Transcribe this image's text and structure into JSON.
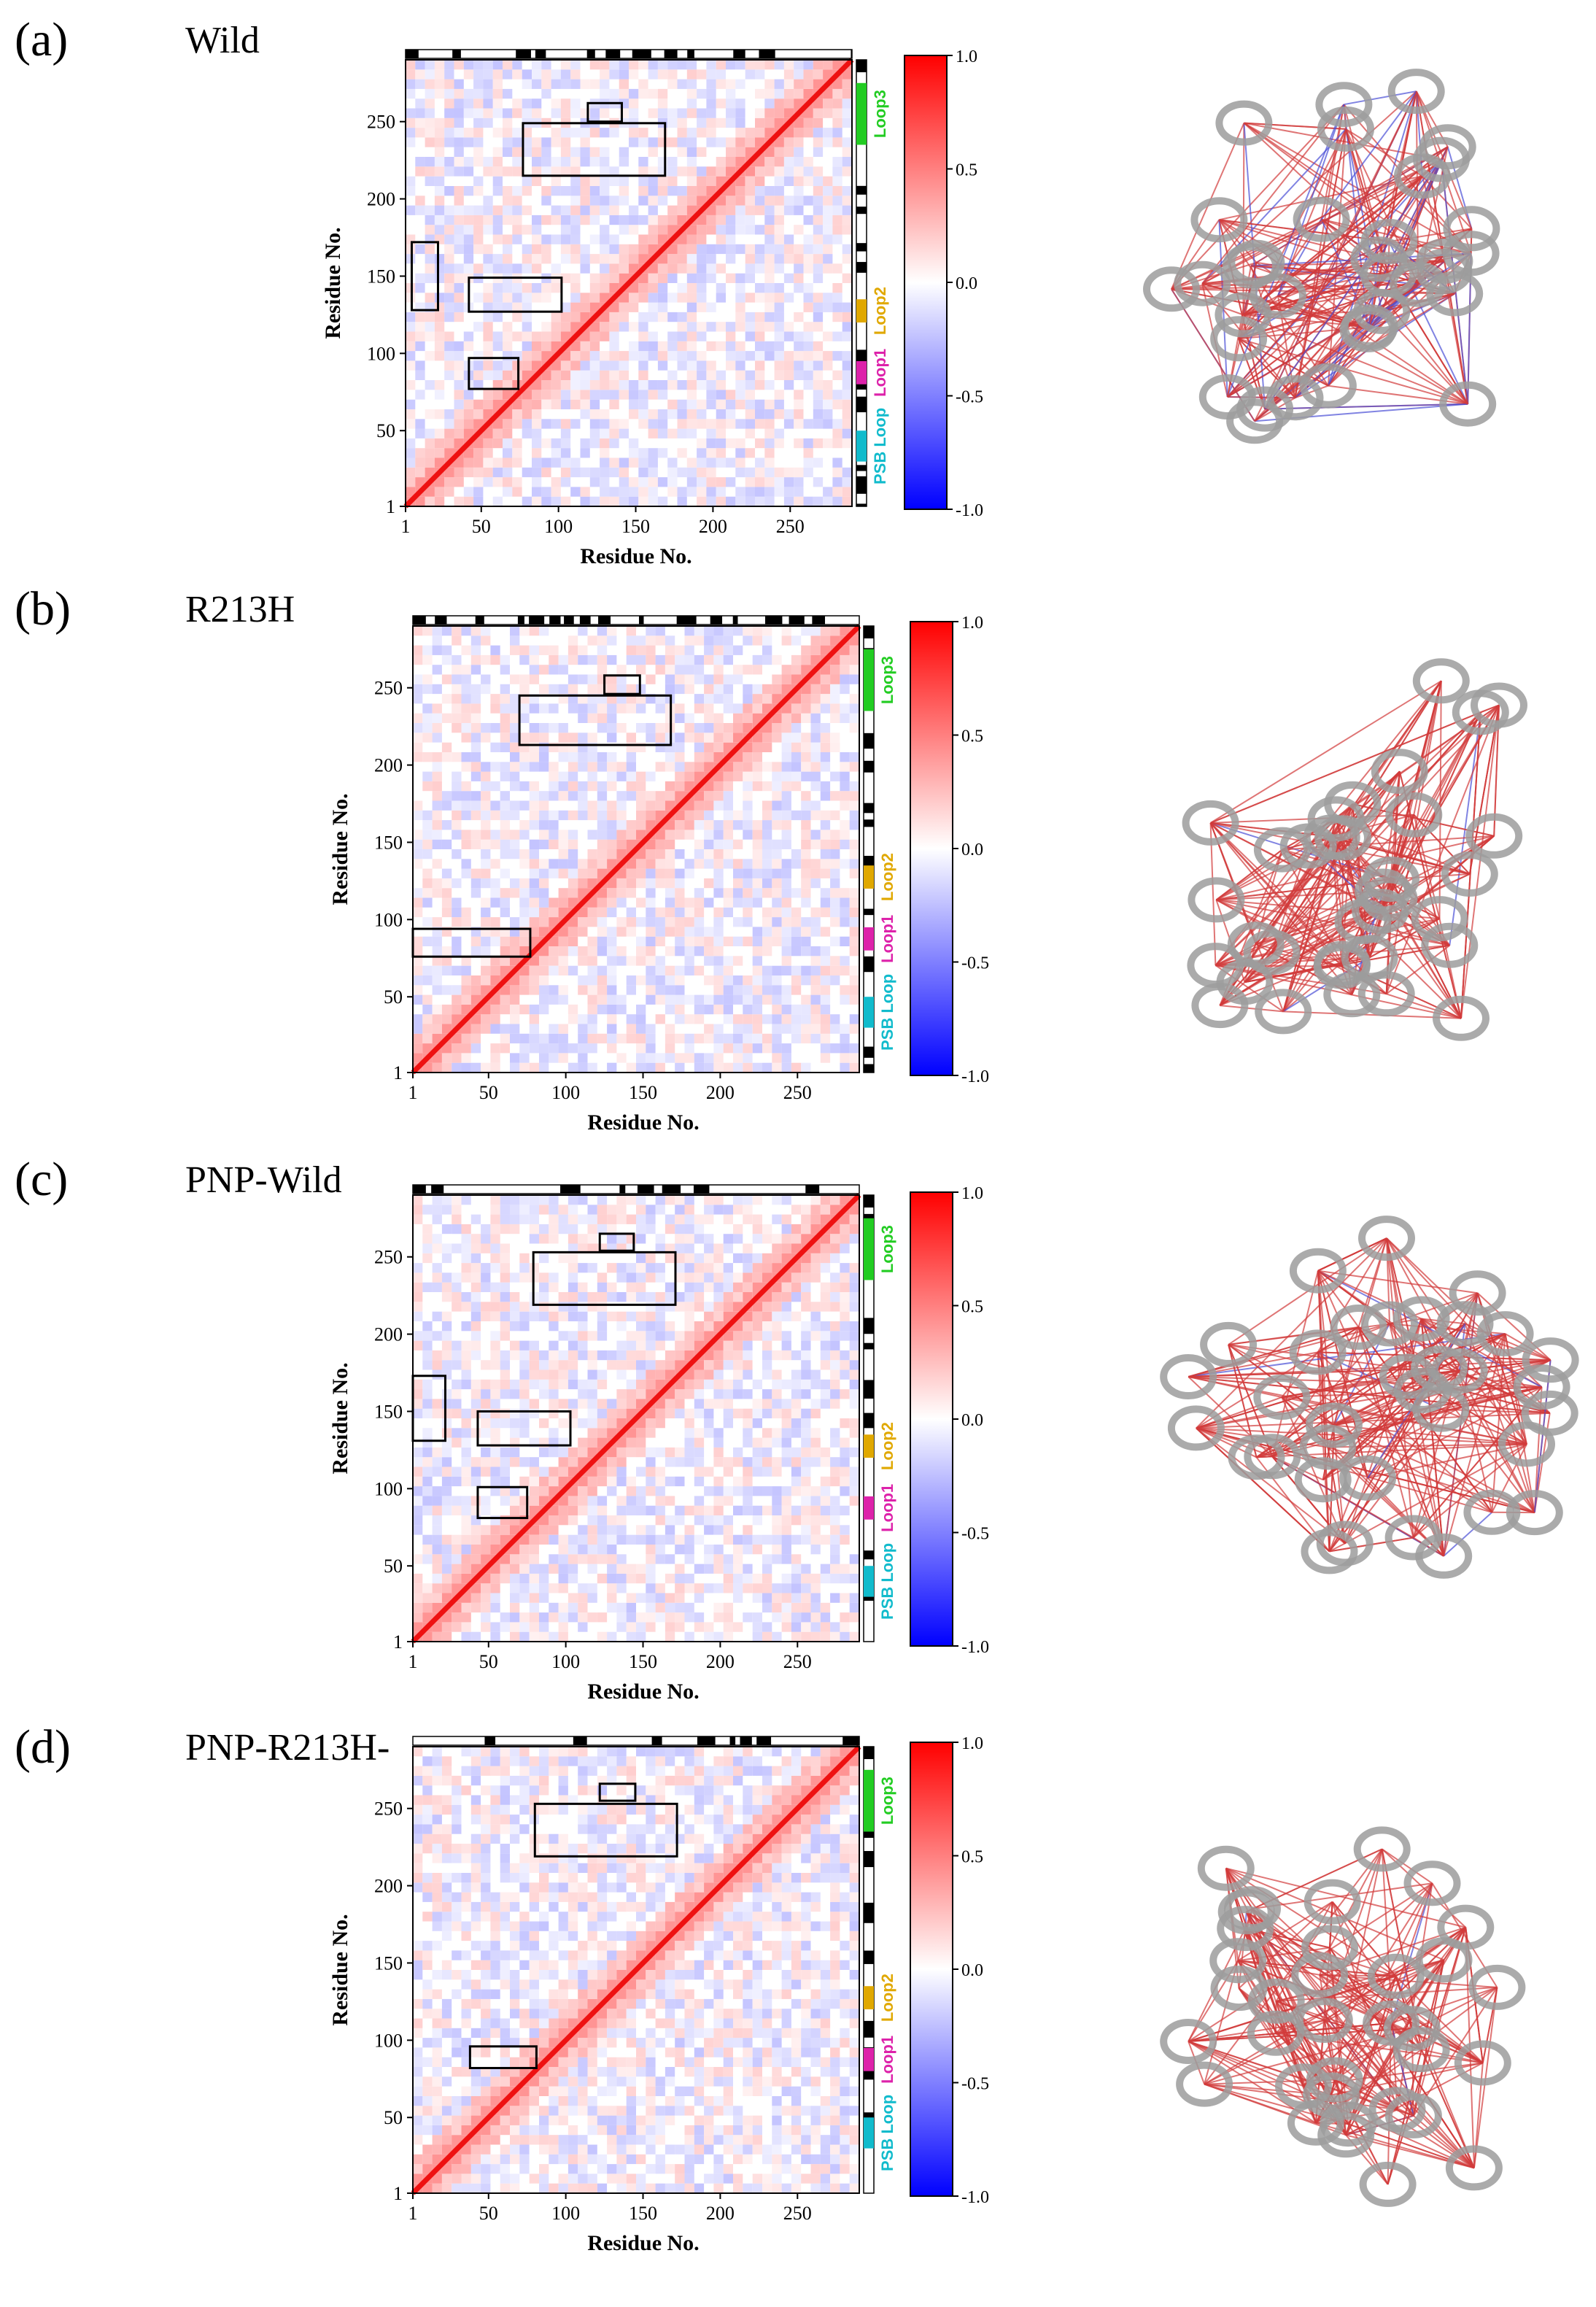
{
  "chart_data": [
    {
      "type": "heatmap",
      "panel_letter": "(a)",
      "title": "Wild",
      "xlabel": "Residue No.",
      "ylabel": "Residue No.",
      "x_ticks": [
        "1",
        "50",
        "100",
        "150",
        "200",
        "250"
      ],
      "y_ticks": [
        "1",
        "50",
        "100",
        "150",
        "200",
        "250"
      ],
      "axis_range": [
        1,
        290
      ],
      "colorbar": {
        "range": [
          -1.0,
          1.0
        ],
        "ticks": [
          "1.0",
          "0.5",
          "0.0",
          "-0.5",
          "-1.0"
        ],
        "colors": [
          "#0000ff",
          "#ffffff",
          "#ff0000"
        ]
      },
      "loops": [
        {
          "label": "Loop3",
          "color": "#22cc22",
          "range": [
            235,
            275
          ]
        },
        {
          "label": "Loop2",
          "color": "#e0a800",
          "range": [
            120,
            135
          ]
        },
        {
          "label": "Loop1",
          "color": "#dd22aa",
          "range": [
            80,
            95
          ]
        },
        {
          "label": "PSB Loop",
          "color": "#11bbcc",
          "range": [
            30,
            50
          ]
        }
      ],
      "highlight_regions": [
        {
          "x": [
            5,
            22
          ],
          "y": [
            128,
            172
          ]
        },
        {
          "x": [
            42,
            102
          ],
          "y": [
            127,
            149
          ]
        },
        {
          "x": [
            42,
            74
          ],
          "y": [
            77,
            97
          ]
        },
        {
          "x": [
            77,
            169
          ],
          "y": [
            215,
            249
          ]
        },
        {
          "x": [
            119,
            141
          ],
          "y": [
            250,
            262
          ]
        }
      ]
    },
    {
      "type": "heatmap",
      "panel_letter": "(b)",
      "title": "R213H",
      "xlabel": "Residue No.",
      "ylabel": "Residue No.",
      "x_ticks": [
        "1",
        "50",
        "100",
        "150",
        "200",
        "250"
      ],
      "y_ticks": [
        "1",
        "50",
        "100",
        "150",
        "200",
        "250"
      ],
      "axis_range": [
        1,
        290
      ],
      "colorbar": {
        "range": [
          -1.0,
          1.0
        ],
        "ticks": [
          "1.0",
          "0.5",
          "0.0",
          "-0.5",
          "-1.0"
        ],
        "colors": [
          "#0000ff",
          "#ffffff",
          "#ff0000"
        ]
      },
      "loops": [
        {
          "label": "Loop3",
          "color": "#22cc22",
          "range": [
            235,
            275
          ]
        },
        {
          "label": "Loop2",
          "color": "#e0a800",
          "range": [
            120,
            135
          ]
        },
        {
          "label": "Loop1",
          "color": "#dd22aa",
          "range": [
            80,
            95
          ]
        },
        {
          "label": "PSB Loop",
          "color": "#11bbcc",
          "range": [
            30,
            50
          ]
        }
      ],
      "highlight_regions": [
        {
          "x": [
            1,
            77
          ],
          "y": [
            76,
            94
          ]
        },
        {
          "x": [
            70,
            168
          ],
          "y": [
            213,
            245
          ]
        },
        {
          "x": [
            125,
            148
          ],
          "y": [
            246,
            258
          ]
        }
      ]
    },
    {
      "type": "heatmap",
      "panel_letter": "(c)",
      "title": "PNP-Wild",
      "xlabel": "Residue No.",
      "ylabel": "Residue No.",
      "x_ticks": [
        "1",
        "50",
        "100",
        "150",
        "200",
        "250"
      ],
      "y_ticks": [
        "1",
        "50",
        "100",
        "150",
        "200",
        "250"
      ],
      "axis_range": [
        1,
        290
      ],
      "colorbar": {
        "range": [
          -1.0,
          1.0
        ],
        "ticks": [
          "1.0",
          "0.5",
          "0.0",
          "-0.5",
          "-1.0"
        ],
        "colors": [
          "#0000ff",
          "#ffffff",
          "#ff0000"
        ]
      },
      "loops": [
        {
          "label": "Loop3",
          "color": "#22cc22",
          "range": [
            235,
            275
          ]
        },
        {
          "label": "Loop2",
          "color": "#e0a800",
          "range": [
            120,
            135
          ]
        },
        {
          "label": "Loop1",
          "color": "#dd22aa",
          "range": [
            80,
            95
          ]
        },
        {
          "label": "PSB Loop",
          "color": "#11bbcc",
          "range": [
            30,
            50
          ]
        }
      ],
      "highlight_regions": [
        {
          "x": [
            1,
            22
          ],
          "y": [
            131,
            173
          ]
        },
        {
          "x": [
            43,
            103
          ],
          "y": [
            128,
            150
          ]
        },
        {
          "x": [
            43,
            75
          ],
          "y": [
            81,
            101
          ]
        },
        {
          "x": [
            79,
            171
          ],
          "y": [
            219,
            253
          ]
        },
        {
          "x": [
            122,
            144
          ],
          "y": [
            254,
            265
          ]
        }
      ]
    },
    {
      "type": "heatmap",
      "panel_letter": "(d)",
      "title": "PNP-R213H-",
      "xlabel": "Residue No.",
      "ylabel": "Residue No.",
      "x_ticks": [
        "1",
        "50",
        "100",
        "150",
        "200",
        "250"
      ],
      "y_ticks": [
        "1",
        "50",
        "100",
        "150",
        "200",
        "250"
      ],
      "axis_range": [
        1,
        290
      ],
      "colorbar": {
        "range": [
          -1.0,
          1.0
        ],
        "ticks": [
          "1.0",
          "0.5",
          "0.0",
          "-0.5",
          "-1.0"
        ],
        "colors": [
          "#0000ff",
          "#ffffff",
          "#ff0000"
        ]
      },
      "loops": [
        {
          "label": "Loop3",
          "color": "#22cc22",
          "range": [
            235,
            275
          ]
        },
        {
          "label": "Loop2",
          "color": "#e0a800",
          "range": [
            120,
            135
          ]
        },
        {
          "label": "Loop1",
          "color": "#dd22aa",
          "range": [
            80,
            95
          ]
        },
        {
          "label": "PSB Loop",
          "color": "#11bbcc",
          "range": [
            30,
            50
          ]
        }
      ],
      "highlight_regions": [
        {
          "x": [
            38,
            81
          ],
          "y": [
            82,
            96
          ]
        },
        {
          "x": [
            80,
            172
          ],
          "y": [
            219,
            253
          ]
        },
        {
          "x": [
            122,
            145
          ],
          "y": [
            255,
            266
          ]
        }
      ]
    }
  ]
}
